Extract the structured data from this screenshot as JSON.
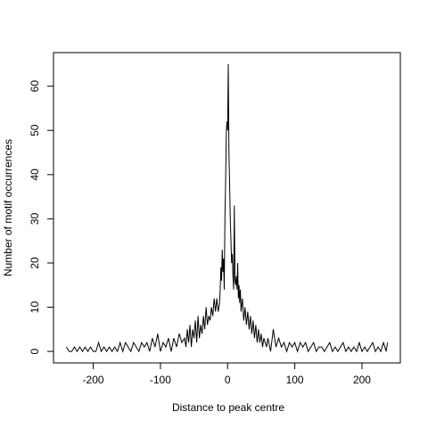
{
  "chart_data": {
    "type": "line",
    "x_label": "Distance to peak centre",
    "y_label": "Number of motif occurrences",
    "x": [
      -240,
      -236,
      -232,
      -228,
      -224,
      -220,
      -216,
      -212,
      -208,
      -204,
      -200,
      -196,
      -192,
      -188,
      -184,
      -180,
      -176,
      -172,
      -168,
      -164,
      -160,
      -156,
      -152,
      -148,
      -144,
      -140,
      -136,
      -132,
      -128,
      -124,
      -120,
      -116,
      -112,
      -108,
      -104,
      -100,
      -96,
      -92,
      -88,
      -84,
      -80,
      -76,
      -72,
      -68,
      -64,
      -62,
      -60,
      -58,
      -56,
      -54,
      -52,
      -50,
      -48,
      -46,
      -44,
      -42,
      -40,
      -38,
      -36,
      -34,
      -32,
      -30,
      -28,
      -26,
      -24,
      -22,
      -20,
      -18,
      -16,
      -14,
      -12,
      -11,
      -10,
      -9,
      -8,
      -7,
      -6,
      -5,
      -4,
      -3,
      -2,
      -1,
      0,
      1,
      2,
      3,
      4,
      5,
      6,
      7,
      8,
      9,
      10,
      11,
      12,
      13,
      14,
      15,
      16,
      17,
      18,
      19,
      20,
      22,
      24,
      26,
      28,
      30,
      32,
      34,
      36,
      38,
      40,
      42,
      44,
      46,
      48,
      50,
      52,
      54,
      56,
      58,
      60,
      64,
      68,
      72,
      76,
      80,
      84,
      88,
      92,
      96,
      100,
      104,
      108,
      112,
      116,
      120,
      124,
      128,
      132,
      136,
      140,
      144,
      148,
      152,
      156,
      160,
      164,
      168,
      172,
      176,
      180,
      184,
      188,
      192,
      196,
      200,
      204,
      208,
      212,
      216,
      220,
      224,
      228,
      232,
      236,
      238
    ],
    "series": [
      {
        "color": "#000000",
        "values": [
          1,
          0,
          0,
          1,
          0,
          1,
          0,
          1,
          0,
          1,
          0,
          0,
          2,
          0,
          1,
          0,
          1,
          0,
          1,
          0,
          2,
          0,
          2,
          1,
          0,
          2,
          1,
          0,
          2,
          1,
          2,
          0,
          3,
          1,
          4,
          0,
          2,
          1,
          3,
          0,
          3,
          1,
          4,
          2,
          3,
          1,
          5,
          2,
          6,
          1,
          5,
          3,
          7,
          2,
          8,
          3,
          6,
          4,
          8,
          5,
          10,
          6,
          8,
          7,
          10,
          8,
          12,
          9,
          12,
          9,
          11,
          14,
          19,
          16,
          23,
          18,
          21,
          14,
          30,
          38,
          49,
          52,
          50,
          65,
          45,
          38,
          30,
          25,
          20,
          22,
          17,
          14,
          33,
          16,
          15,
          17,
          14,
          20,
          12,
          15,
          11,
          14,
          9,
          12,
          7,
          10,
          6,
          9,
          5,
          8,
          4,
          7,
          3,
          6,
          2,
          5,
          2,
          4,
          1,
          3,
          2,
          1,
          3,
          0,
          5,
          1,
          3,
          1,
          2,
          0,
          2,
          1,
          2,
          0,
          2,
          1,
          2,
          0,
          1,
          2,
          0,
          1,
          1,
          0,
          1,
          2,
          0,
          1,
          0,
          1,
          2,
          0,
          1,
          0,
          1,
          0,
          2,
          0,
          1,
          0,
          1,
          2,
          0,
          1,
          0,
          2,
          0,
          2
        ]
      }
    ],
    "xlim": [
      -259.12,
      257.12
    ],
    "ylim": [
      -2.6,
      67.6
    ],
    "xticks": [
      -200,
      -100,
      0,
      100,
      200
    ],
    "yticks": [
      0,
      10,
      20,
      30,
      40,
      50,
      60
    ]
  }
}
